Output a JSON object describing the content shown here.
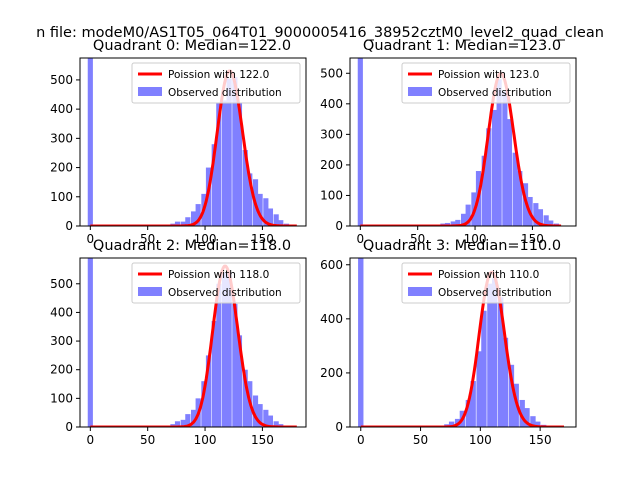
{
  "figure": {
    "suptitle": "n file: modeM0/AS1T05_064T01_9000005416_38952cztM0_level2_quad_clean"
  },
  "colors": {
    "poisson": "#ff0000",
    "histogram": "#8080ff",
    "axes": "#000000"
  },
  "chart_data": [
    {
      "type": "bar",
      "title": "Quadrant 0: Median=122.0",
      "legend": [
        "Poission with 122.0",
        "Observed distribution"
      ],
      "legend_position": "top-right",
      "grid": false,
      "xlim": [
        -9,
        188
      ],
      "ylim": [
        0,
        575
      ],
      "xticks": [
        0,
        50,
        100,
        150
      ],
      "yticks": [
        0,
        100,
        200,
        300,
        400,
        500
      ],
      "median": 122,
      "bar_width": 4.5,
      "bins": [
        [
          0,
          575
        ],
        [
          54,
          2
        ],
        [
          72,
          8
        ],
        [
          76,
          15
        ],
        [
          81,
          15
        ],
        [
          85,
          30
        ],
        [
          90,
          50
        ],
        [
          94,
          75
        ],
        [
          99,
          110
        ],
        [
          103,
          200
        ],
        [
          108,
          280
        ],
        [
          112,
          420
        ],
        [
          117,
          430
        ],
        [
          121,
          505
        ],
        [
          126,
          510
        ],
        [
          130,
          420
        ],
        [
          135,
          260
        ],
        [
          139,
          180
        ],
        [
          144,
          160
        ],
        [
          148,
          110
        ],
        [
          153,
          95
        ],
        [
          157,
          60
        ],
        [
          162,
          40
        ],
        [
          166,
          20
        ],
        [
          171,
          8
        ],
        [
          175,
          3
        ]
      ],
      "poisson_x": [
        0,
        180
      ]
    },
    {
      "type": "bar",
      "title": "Quadrant 1: Median=123.0",
      "legend": [
        "Poission with 123.0",
        "Observed distribution"
      ],
      "legend_position": "top-right",
      "grid": false,
      "xlim": [
        -9,
        188
      ],
      "ylim": [
        0,
        550
      ],
      "xticks": [
        0,
        50,
        100,
        150
      ],
      "yticks": [
        0,
        100,
        200,
        300,
        400,
        500
      ],
      "median": 123,
      "bar_width": 4.5,
      "bins": [
        [
          0,
          550
        ],
        [
          63,
          3
        ],
        [
          72,
          8
        ],
        [
          76,
          10
        ],
        [
          81,
          15
        ],
        [
          85,
          20
        ],
        [
          90,
          40
        ],
        [
          94,
          70
        ],
        [
          99,
          110
        ],
        [
          103,
          180
        ],
        [
          108,
          230
        ],
        [
          112,
          320
        ],
        [
          117,
          380
        ],
        [
          121,
          480
        ],
        [
          126,
          440
        ],
        [
          130,
          350
        ],
        [
          135,
          240
        ],
        [
          139,
          180
        ],
        [
          144,
          140
        ],
        [
          148,
          95
        ],
        [
          153,
          75
        ],
        [
          157,
          55
        ],
        [
          162,
          35
        ],
        [
          166,
          18
        ],
        [
          171,
          8
        ]
      ],
      "poisson_x": [
        0,
        175
      ]
    },
    {
      "type": "bar",
      "title": "Quadrant 2: Median=118.0",
      "legend": [
        "Poission with 118.0",
        "Observed distribution"
      ],
      "legend_position": "top-right",
      "grid": false,
      "xlim": [
        -9,
        188
      ],
      "ylim": [
        0,
        590
      ],
      "xticks": [
        0,
        50,
        100,
        150
      ],
      "yticks": [
        0,
        100,
        200,
        300,
        400,
        500
      ],
      "median": 118,
      "bar_width": 4.5,
      "bins": [
        [
          0,
          590
        ],
        [
          72,
          10
        ],
        [
          76,
          20
        ],
        [
          81,
          25
        ],
        [
          85,
          45
        ],
        [
          90,
          60
        ],
        [
          94,
          100
        ],
        [
          99,
          160
        ],
        [
          103,
          250
        ],
        [
          108,
          370
        ],
        [
          112,
          500
        ],
        [
          117,
          540
        ],
        [
          121,
          540
        ],
        [
          126,
          430
        ],
        [
          130,
          320
        ],
        [
          135,
          200
        ],
        [
          139,
          160
        ],
        [
          144,
          110
        ],
        [
          148,
          80
        ],
        [
          153,
          60
        ],
        [
          157,
          40
        ],
        [
          162,
          20
        ],
        [
          166,
          10
        ],
        [
          171,
          3
        ]
      ],
      "poisson_x": [
        0,
        180
      ]
    },
    {
      "type": "bar",
      "title": "Quadrant 3: Median=110.0",
      "legend": [
        "Poission with 110.0",
        "Observed distribution"
      ],
      "legend_position": "top-right",
      "grid": false,
      "xlim": [
        -9,
        180
      ],
      "ylim": [
        0,
        625
      ],
      "xticks": [
        0,
        50,
        100,
        150
      ],
      "yticks": [
        0,
        200,
        400,
        600
      ],
      "median": 110,
      "bar_width": 4.5,
      "bins": [
        [
          0,
          625
        ],
        [
          63,
          5
        ],
        [
          72,
          10
        ],
        [
          76,
          20
        ],
        [
          81,
          30
        ],
        [
          85,
          60
        ],
        [
          90,
          100
        ],
        [
          94,
          170
        ],
        [
          99,
          280
        ],
        [
          103,
          430
        ],
        [
          108,
          530
        ],
        [
          112,
          550
        ],
        [
          117,
          480
        ],
        [
          121,
          330
        ],
        [
          126,
          230
        ],
        [
          130,
          160
        ],
        [
          135,
          100
        ],
        [
          139,
          70
        ],
        [
          144,
          40
        ],
        [
          148,
          20
        ],
        [
          153,
          8
        ],
        [
          157,
          3
        ]
      ],
      "poisson_x": [
        0,
        170
      ]
    }
  ]
}
